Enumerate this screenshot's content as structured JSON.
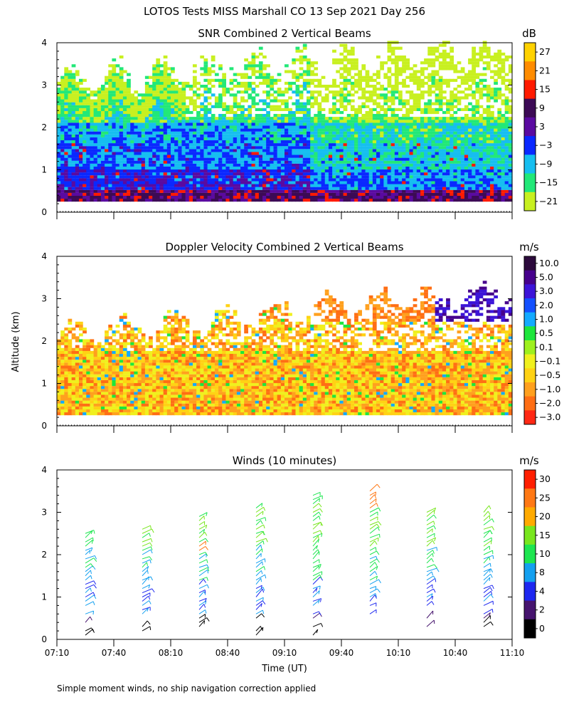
{
  "title": "LOTOS Tests MISS Marshall CO  13 Sep 2021 Day 256",
  "footnote": "Simple moment winds, no ship navigation correction applied",
  "ylabel": "Altitude (km)",
  "xlabel": "Time (UT)",
  "chart_data": [
    {
      "type": "heatmap",
      "title": "SNR Combined 2 Vertical Beams",
      "colorbar_unit": "dB",
      "colorbar_labels": [
        "27",
        "21",
        "15",
        "9",
        "3",
        "−3",
        "−9",
        "−15",
        "−21"
      ],
      "colors": [
        "#ffd200",
        "#ff8c00",
        "#ff1a00",
        "#3c0a55",
        "#5a0aa0",
        "#0a28ff",
        "#16bef0",
        "#22e878",
        "#c8f020"
      ],
      "ylim": [
        0,
        4
      ],
      "yticks": [
        "0",
        "1",
        "2",
        "3",
        "4"
      ],
      "xlim": [
        "07:10",
        "11:10"
      ],
      "grid": false
    },
    {
      "type": "heatmap",
      "title": "Doppler Velocity Combined 2 Vertical Beams",
      "colorbar_unit": "m/s",
      "colorbar_labels": [
        "10.0",
        "5.0",
        "3.0",
        "2.0",
        "1.0",
        "0.5",
        "0.1",
        "−0.1",
        "−0.5",
        "−1.0",
        "−2.0",
        "−3.0"
      ],
      "colors": [
        "#2c0a3c",
        "#46008c",
        "#3c14d8",
        "#1450ff",
        "#14aaff",
        "#1ee63c",
        "#9ef01e",
        "#f0f01e",
        "#ffd214",
        "#ffa01e",
        "#ff6e14",
        "#ff2814"
      ],
      "ylim": [
        0,
        4
      ],
      "yticks": [
        "0",
        "1",
        "2",
        "3",
        "4"
      ],
      "xlim": [
        "07:10",
        "11:10"
      ],
      "grid": false
    },
    {
      "type": "scatter",
      "title": "Winds (10 minutes)",
      "colorbar_unit": "m/s",
      "colorbar_labels": [
        "30",
        "25",
        "20",
        "15",
        "10",
        "8",
        "4",
        "2",
        "0"
      ],
      "colors": [
        "#ff1e00",
        "#ff7814",
        "#ffaa00",
        "#78e61e",
        "#1ee650",
        "#14a0f0",
        "#1e28f0",
        "#46146e",
        "#000000"
      ],
      "ylim": [
        0,
        4
      ],
      "yticks": [
        "0",
        "1",
        "2",
        "3",
        "4"
      ],
      "xlim": [
        "07:10",
        "11:10"
      ],
      "xticks": [
        "07:10",
        "07:40",
        "08:10",
        "08:40",
        "09:10",
        "09:40",
        "10:10",
        "10:40",
        "11:10"
      ],
      "profile_times": [
        "07:25",
        "07:55",
        "08:25",
        "08:55",
        "09:25",
        "09:55",
        "10:25",
        "10:55"
      ],
      "profile_tops_km": [
        2.5,
        2.6,
        2.9,
        3.1,
        3.4,
        3.5,
        3.0,
        3.0
      ],
      "grid": false
    }
  ]
}
